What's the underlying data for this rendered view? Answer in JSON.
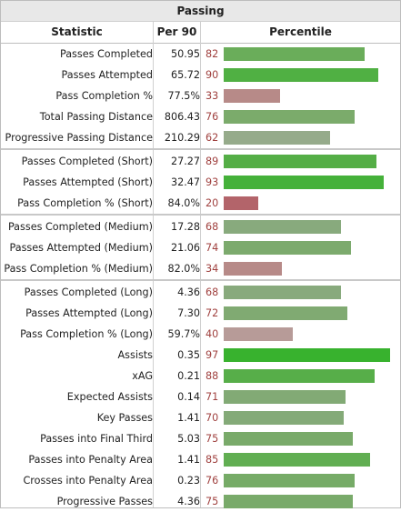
{
  "chart_data": {
    "type": "table",
    "title": "Passing",
    "columns": [
      "Statistic",
      "Per 90",
      "Percentile"
    ],
    "groups": [
      [
        {
          "stat": "Passes Completed",
          "per90": "50.95",
          "pct": 82,
          "color": "#6aad5a"
        },
        {
          "stat": "Passes Attempted",
          "per90": "65.72",
          "pct": 90,
          "color": "#50b043"
        },
        {
          "stat": "Pass Completion %",
          "per90": "77.5%",
          "pct": 33,
          "color": "#b78a88"
        },
        {
          "stat": "Total Passing Distance",
          "per90": "806.43",
          "pct": 76,
          "color": "#7bab6b"
        },
        {
          "stat": "Progressive Passing Distance",
          "per90": "210.29",
          "pct": 62,
          "color": "#96ab8b"
        }
      ],
      [
        {
          "stat": "Passes Completed (Short)",
          "per90": "27.27",
          "pct": 89,
          "color": "#54ae46"
        },
        {
          "stat": "Passes Attempted (Short)",
          "per90": "32.47",
          "pct": 93,
          "color": "#45b13a"
        },
        {
          "stat": "Pass Completion % (Short)",
          "per90": "84.0%",
          "pct": 20,
          "color": "#b3646a"
        }
      ],
      [
        {
          "stat": "Passes Completed (Medium)",
          "per90": "17.28",
          "pct": 68,
          "color": "#88aa7d"
        },
        {
          "stat": "Passes Attempted (Medium)",
          "per90": "21.06",
          "pct": 74,
          "color": "#7caa6d"
        },
        {
          "stat": "Pass Completion % (Medium)",
          "per90": "82.0%",
          "pct": 34,
          "color": "#b78a88"
        }
      ],
      [
        {
          "stat": "Passes Completed (Long)",
          "per90": "4.36",
          "pct": 68,
          "color": "#88aa7d"
        },
        {
          "stat": "Passes Attempted (Long)",
          "per90": "7.30",
          "pct": 72,
          "color": "#80aa72"
        },
        {
          "stat": "Pass Completion % (Long)",
          "per90": "59.7%",
          "pct": 40,
          "color": "#b79b98"
        },
        {
          "stat": "Assists",
          "per90": "0.35",
          "pct": 97,
          "color": "#38b22e"
        },
        {
          "stat": "xAG",
          "per90": "0.21",
          "pct": 88,
          "color": "#57ae49"
        },
        {
          "stat": "Expected Assists",
          "per90": "0.14",
          "pct": 71,
          "color": "#82aa75"
        },
        {
          "stat": "Key Passes",
          "per90": "1.41",
          "pct": 70,
          "color": "#84aa78"
        },
        {
          "stat": "Passes into Final Third",
          "per90": "5.03",
          "pct": 75,
          "color": "#79aa6a"
        },
        {
          "stat": "Passes into Penalty Area",
          "per90": "1.41",
          "pct": 85,
          "color": "#61ae52"
        },
        {
          "stat": "Crosses into Penalty Area",
          "per90": "0.23",
          "pct": 76,
          "color": "#76ab67"
        },
        {
          "stat": "Progressive Passes",
          "per90": "4.36",
          "pct": 75,
          "color": "#79aa6a"
        }
      ]
    ],
    "percentile_range": [
      0,
      100
    ]
  }
}
